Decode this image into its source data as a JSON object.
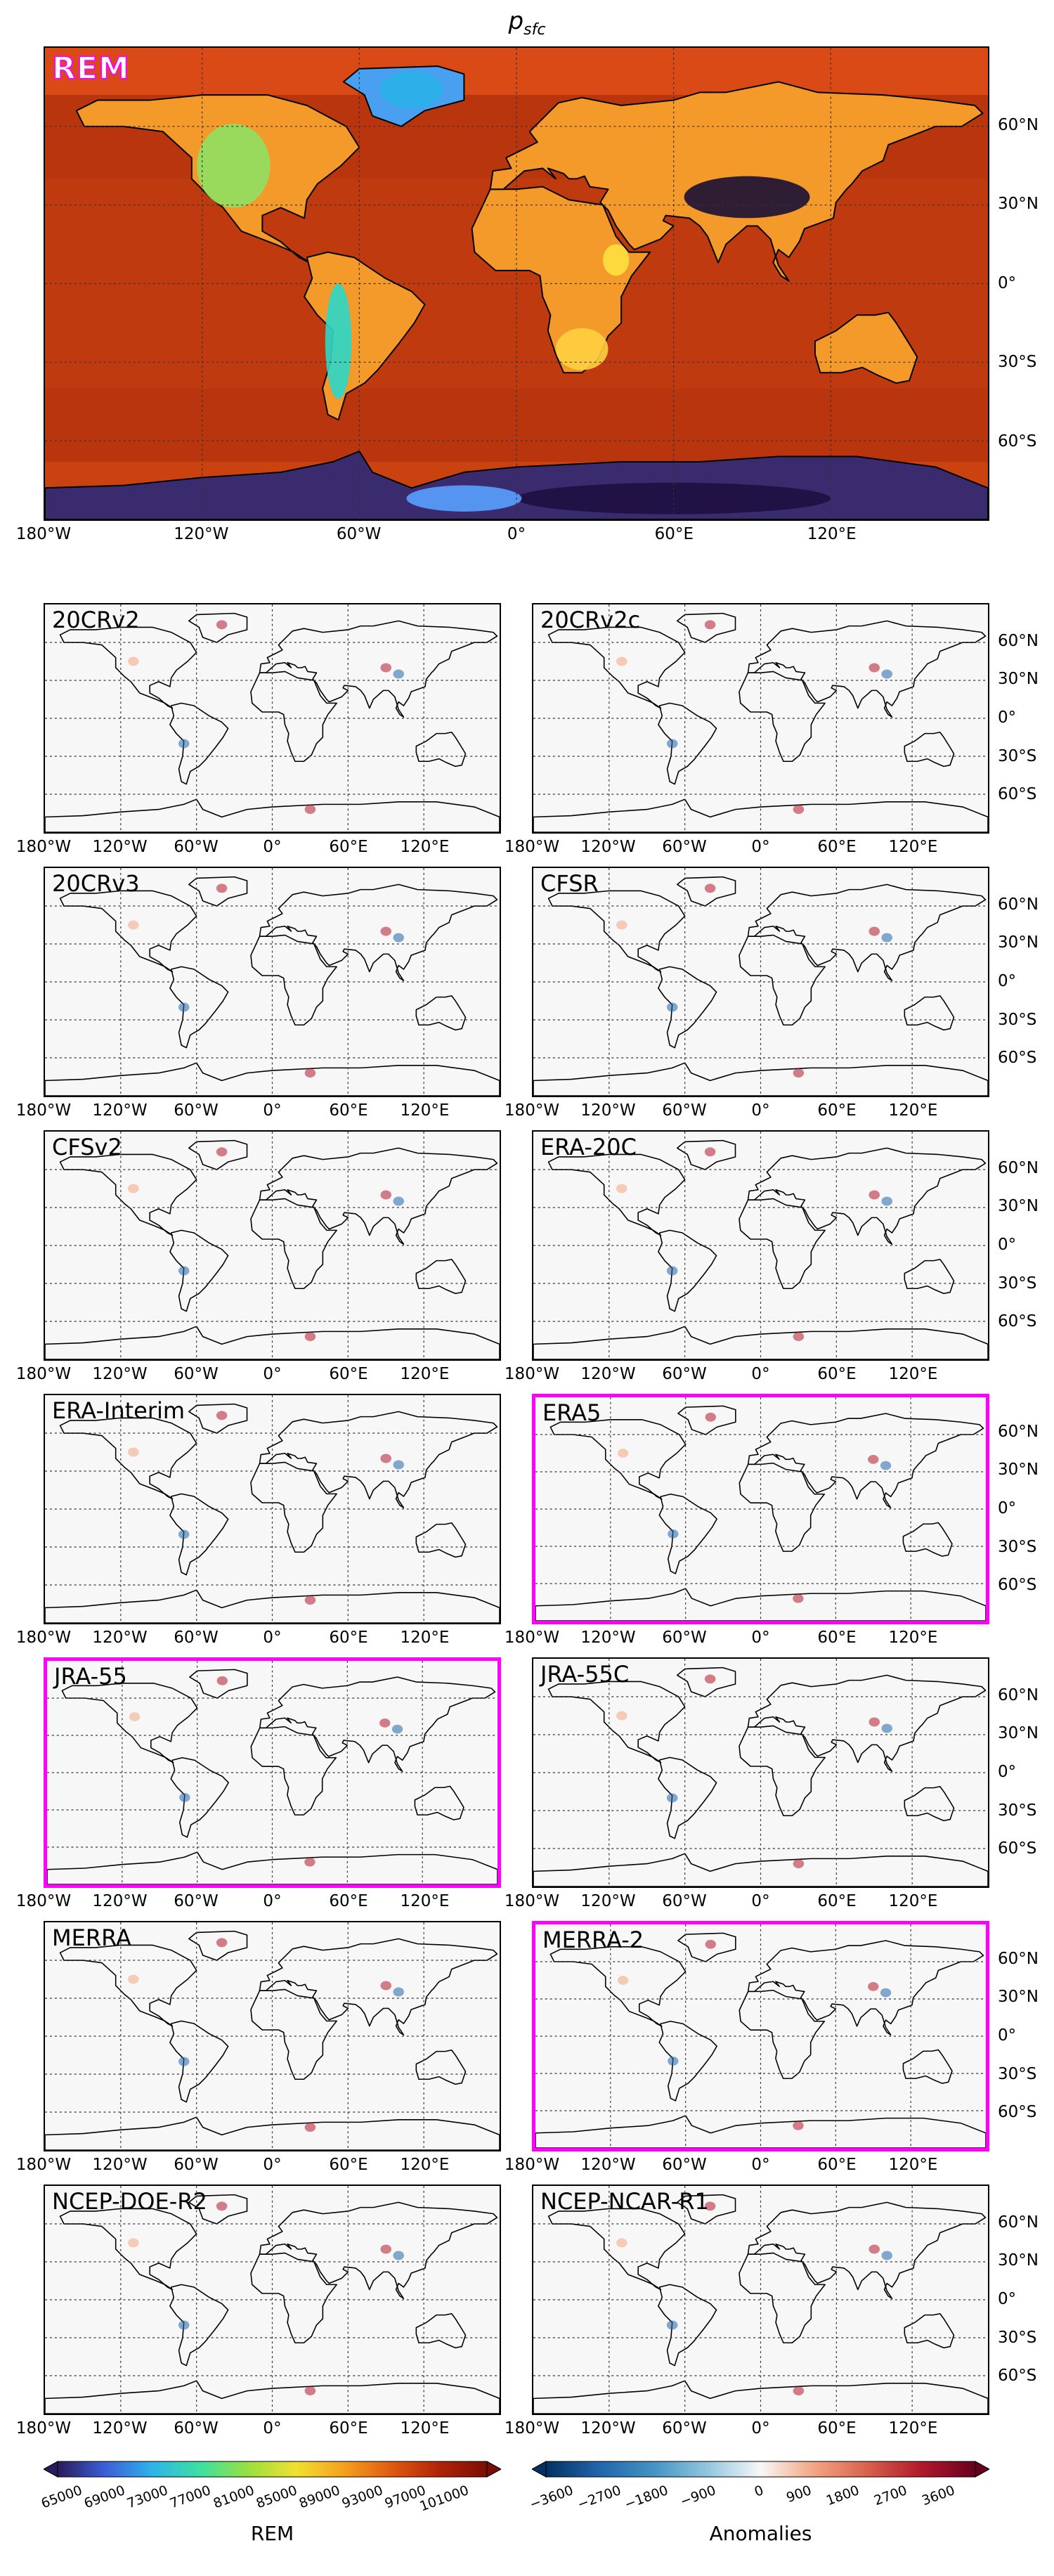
{
  "figure_title": "p",
  "figure_title_sub": "sfc",
  "main_panel": {
    "label": "REM"
  },
  "panels": [
    {
      "label": "20CRv2",
      "highlighted": false
    },
    {
      "label": "20CRv2c",
      "highlighted": false
    },
    {
      "label": "20CRv3",
      "highlighted": false
    },
    {
      "label": "CFSR",
      "highlighted": false
    },
    {
      "label": "CFSv2",
      "highlighted": false
    },
    {
      "label": "ERA-20C",
      "highlighted": false
    },
    {
      "label": "ERA-Interim",
      "highlighted": false
    },
    {
      "label": "ERA5",
      "highlighted": true
    },
    {
      "label": "JRA-55",
      "highlighted": true
    },
    {
      "label": "JRA-55C",
      "highlighted": false
    },
    {
      "label": "MERRA",
      "highlighted": false
    },
    {
      "label": "MERRA-2",
      "highlighted": true
    },
    {
      "label": "NCEP-DOE-R2",
      "highlighted": false
    },
    {
      "label": "NCEP-NCAR-R1",
      "highlighted": false
    }
  ],
  "lon_ticks": [
    "180°W",
    "120°W",
    "60°W",
    "0°",
    "60°E",
    "120°E"
  ],
  "lat_ticks": [
    "60°N",
    "30°N",
    "0°",
    "30°S",
    "60°S"
  ],
  "colorbar_rem": {
    "label": "REM",
    "ticks": [
      "65000",
      "69000",
      "73000",
      "77000",
      "81000",
      "85000",
      "89000",
      "93000",
      "97000",
      "101000"
    ]
  },
  "colorbar_anom": {
    "label": "Anomalies",
    "ticks": [
      "−3600",
      "−2700",
      "−1800",
      "−900",
      "0",
      "900",
      "1800",
      "2700",
      "3600"
    ]
  },
  "highlight_color": "#ff00ff"
}
